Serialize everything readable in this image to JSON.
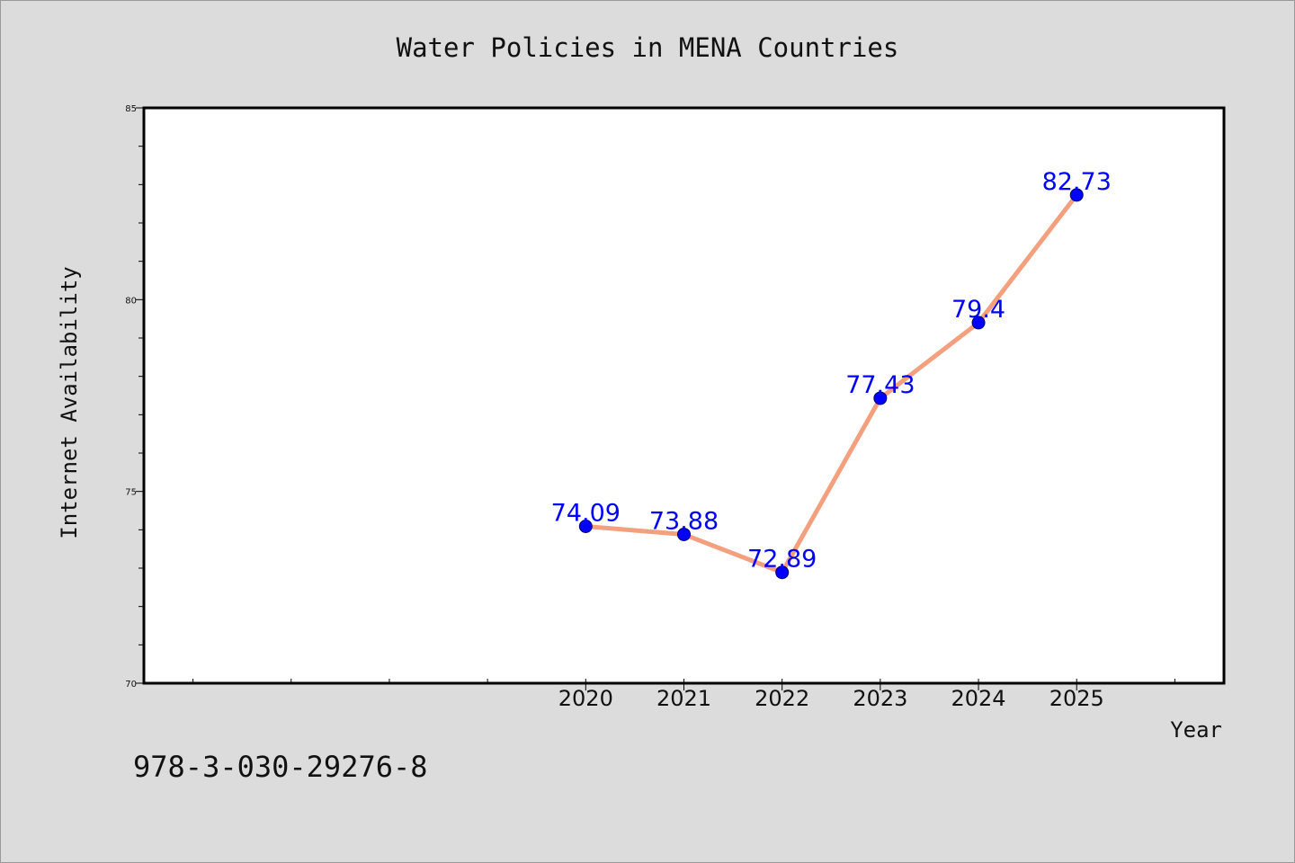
{
  "chart_data": {
    "type": "line",
    "title": "Water Policies in MENA Countries",
    "xlabel": "Year",
    "ylabel": "Internet Availability",
    "x": [
      "2020",
      "2021",
      "2022",
      "2023",
      "2024",
      "2025"
    ],
    "series": [
      {
        "values": [
          74.09,
          73.88,
          72.89,
          77.43,
          79.4,
          82.73
        ],
        "data_labels": [
          "74.09",
          "73.88",
          "72.89",
          "77.43",
          "79.4",
          "82.73"
        ],
        "line_color": "#f4a07e",
        "marker_color": "#0000ff"
      }
    ],
    "xlim": [
      2015.5,
      2026.5
    ],
    "ylim": [
      70,
      85
    ],
    "y_ticks": [
      "70",
      "75",
      "80",
      "85"
    ],
    "grid": false,
    "legend": "none"
  },
  "footer": {
    "isbn": "978-3-030-29276-8"
  },
  "colors": {
    "background": "#dcdcdc",
    "plot_background": "#ffffff"
  }
}
